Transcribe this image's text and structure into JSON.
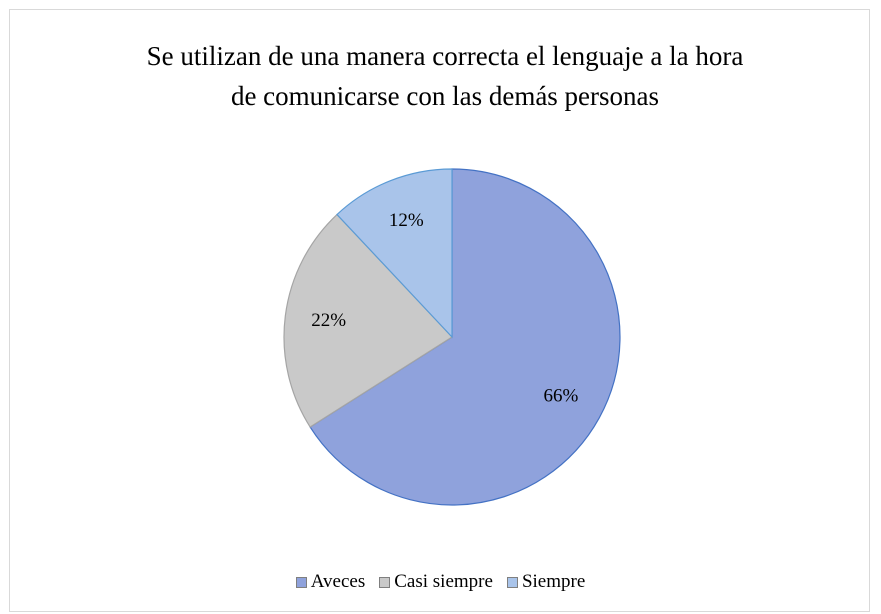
{
  "chart_data": {
    "type": "pie",
    "title": "Se utilizan de una manera correcta el lenguaje a la hora de comunicarse con las demás personas",
    "categories": [
      "Aveces",
      "Casi siempre",
      "Siempre"
    ],
    "values": [
      66,
      22,
      12
    ],
    "value_labels": [
      "66%",
      "22%",
      "12%"
    ],
    "colors": [
      "#8fa2dc",
      "#c9c9c9",
      "#a9c4ea"
    ],
    "legend": "bottom"
  }
}
